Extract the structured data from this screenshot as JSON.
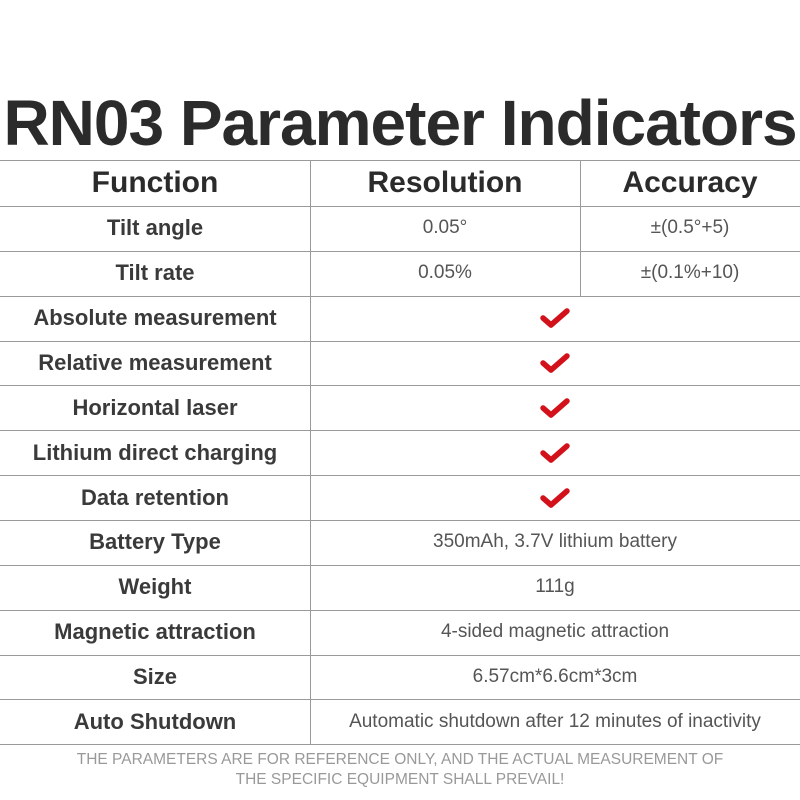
{
  "header": {
    "title": "RN03 Parameter Indicators"
  },
  "table": {
    "columns": [
      "Function",
      "Resolution",
      "Accuracy"
    ],
    "rows": [
      {
        "function": "Tilt angle",
        "resolution": "0.05°",
        "accuracy": "±(0.5°+5)"
      },
      {
        "function": "Tilt rate",
        "resolution": "0.05%",
        "accuracy": "±(0.1%+10)"
      },
      {
        "function": "Absolute measurement",
        "check": true
      },
      {
        "function": "Relative measurement",
        "check": true
      },
      {
        "function": "Horizontal laser",
        "check": true
      },
      {
        "function": "Lithium direct charging",
        "check": true
      },
      {
        "function": "Data retention",
        "check": true
      },
      {
        "function": "Battery Type",
        "value": "350mAh, 3.7V lithium battery"
      },
      {
        "function": "Weight",
        "value": "111g"
      },
      {
        "function": "Magnetic attraction",
        "value": "4-sided magnetic attraction"
      },
      {
        "function": "Size",
        "value": "6.57cm*6.6cm*3cm"
      },
      {
        "function": "Auto Shutdown",
        "value": "Automatic shutdown after 12 minutes of inactivity"
      }
    ]
  },
  "footer": {
    "note": [
      "THE PARAMETERS ARE FOR REFERENCE ONLY, AND THE ACTUAL MEASUREMENT OF",
      "THE SPECIFIC EQUIPMENT SHALL PREVAIL!"
    ]
  }
}
